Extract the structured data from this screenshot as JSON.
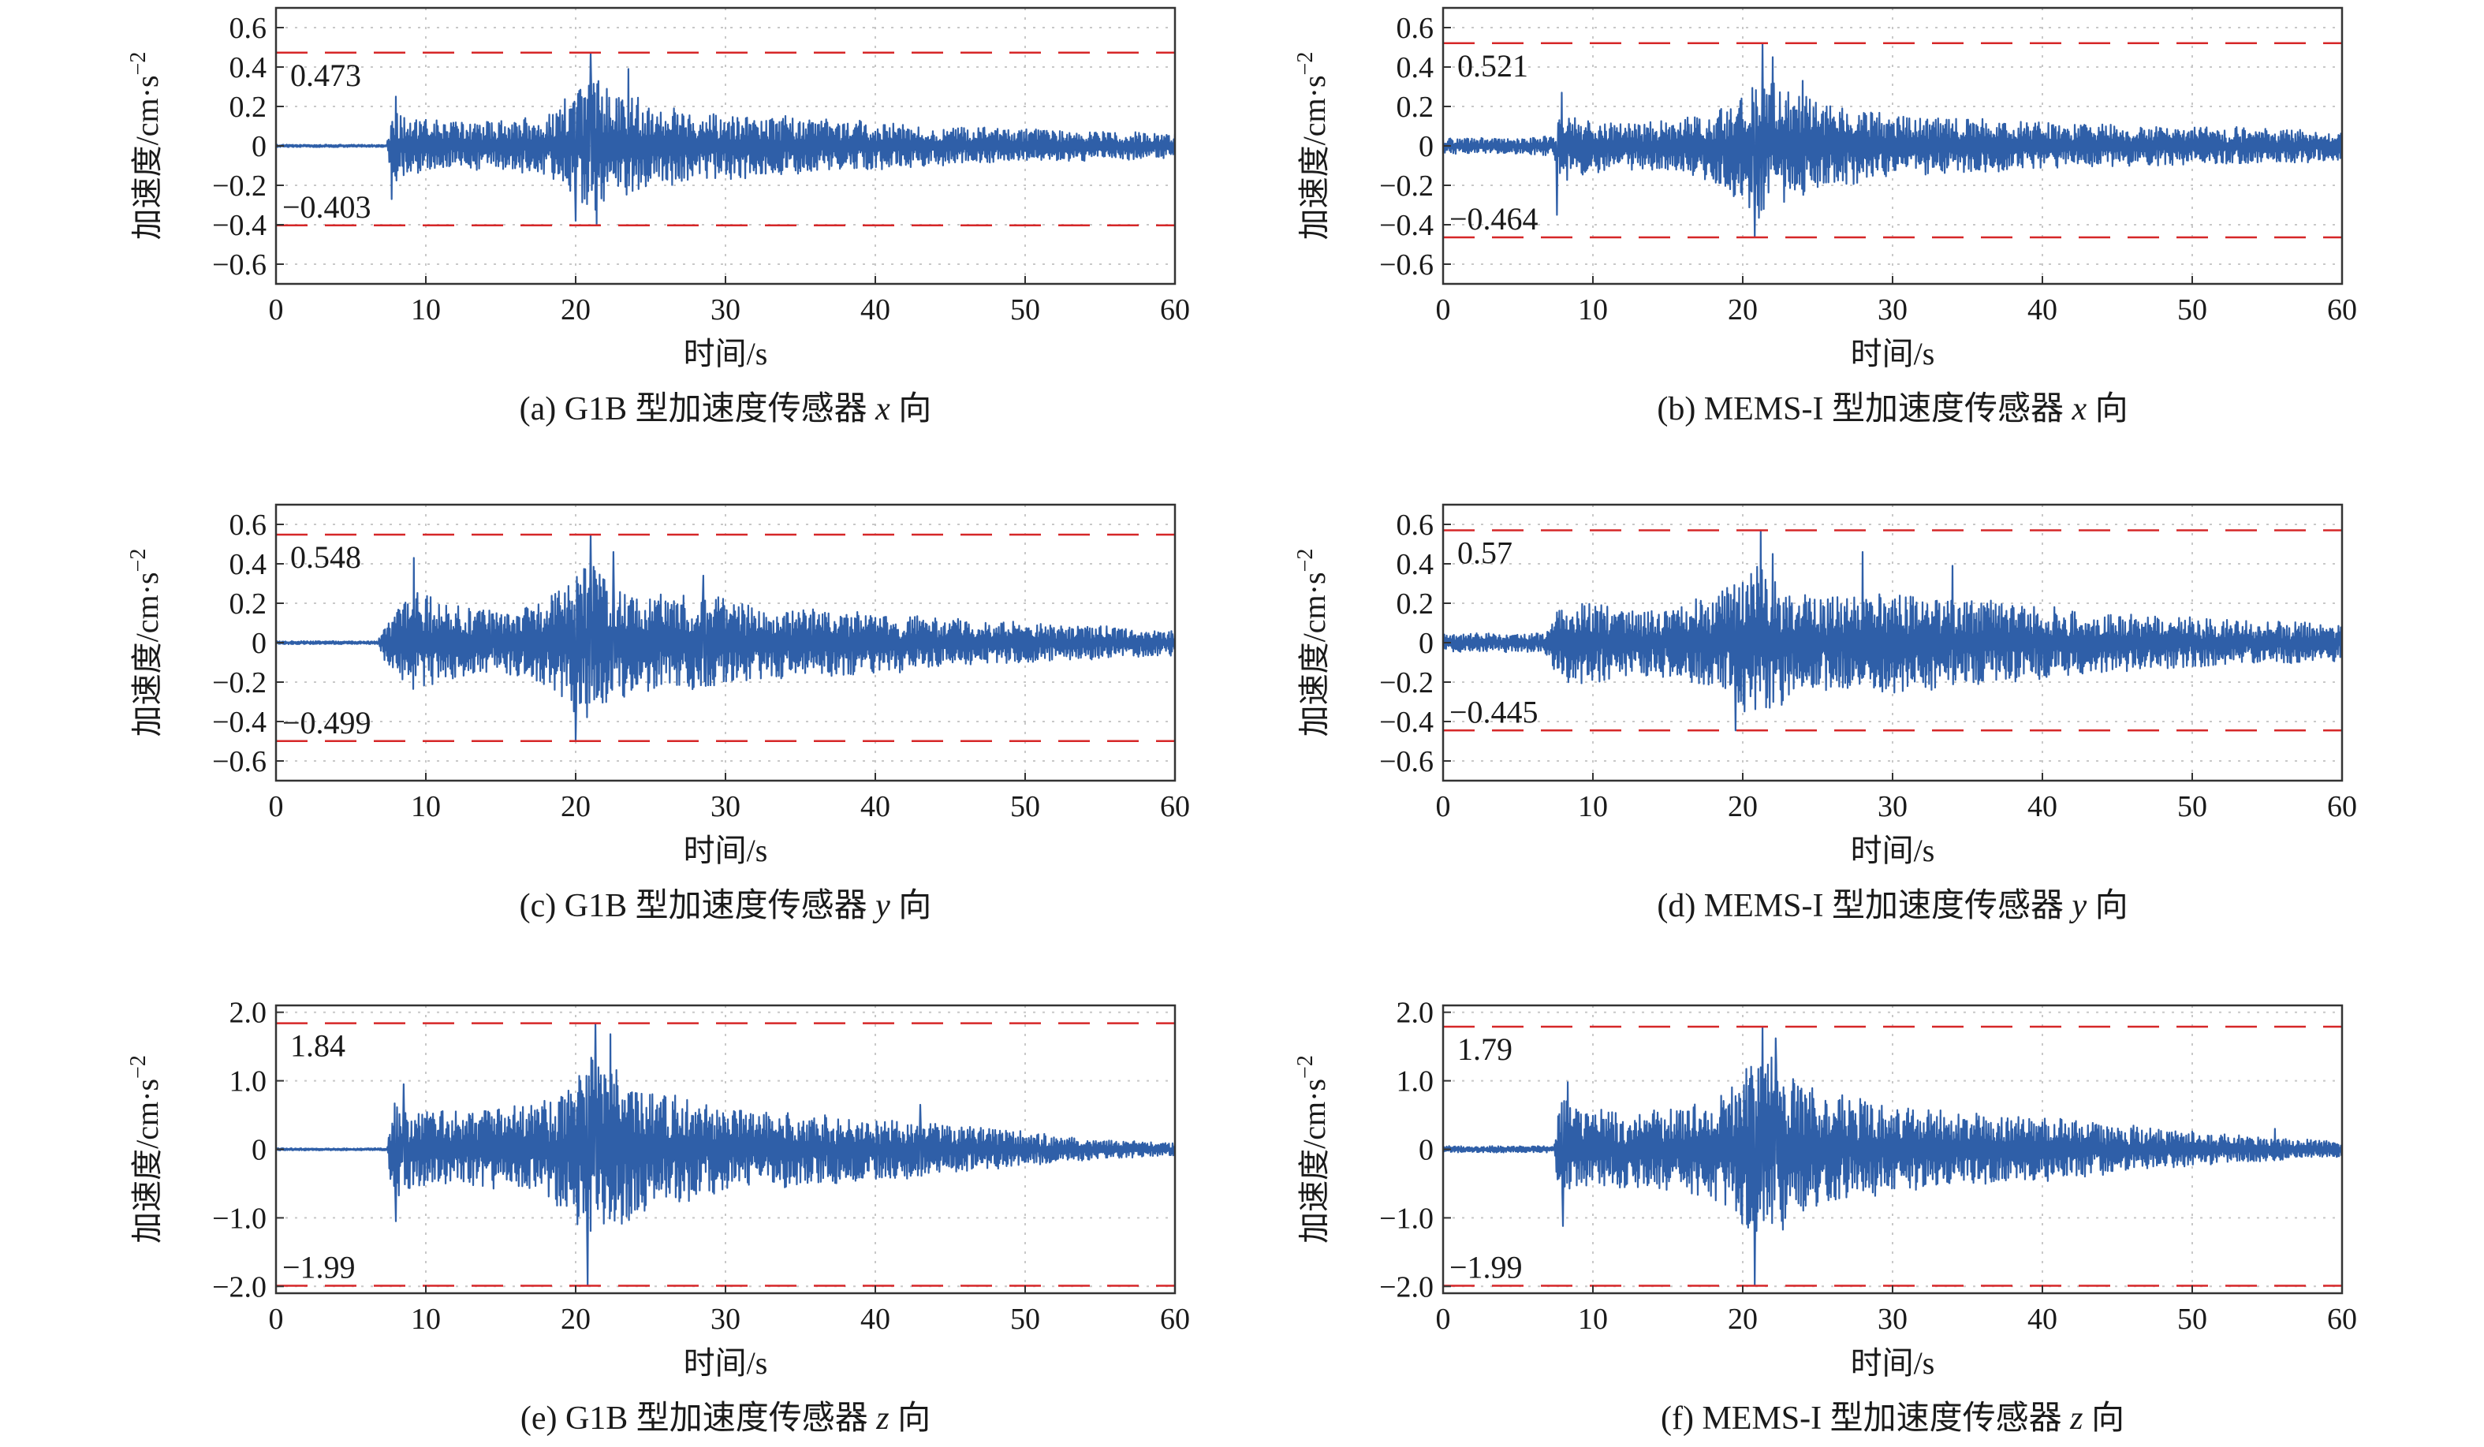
{
  "figure": {
    "line_color": "#2f5fa8",
    "ref_color": "#d62728",
    "grid_color": "#c8c8c8",
    "ylabel_main": "加速度/cm·s",
    "ylabel_sup": "−2",
    "xlabel": "时间/s"
  },
  "chart_data": [
    {
      "type": "line",
      "caption_pre": "(a) G1B 型加速度传感器 ",
      "caption_axis": "x",
      "caption_post": " 向",
      "xlim": [
        0,
        60
      ],
      "xticks": [
        0,
        10,
        20,
        30,
        40,
        50,
        60
      ],
      "ylim": [
        -0.7,
        0.7
      ],
      "yticks": [
        -0.6,
        -0.4,
        -0.2,
        0,
        0.2,
        0.4,
        0.6
      ],
      "ytick_labels": [
        "−0.6",
        "−0.4",
        "−0.2",
        "0",
        "0.2",
        "0.4",
        "0.6"
      ],
      "max_line": 0.473,
      "min_line": -0.403,
      "max_label": "0.473",
      "min_label": "−0.403",
      "grid": "dotted",
      "envelope": [
        [
          0,
          0.008
        ],
        [
          7.4,
          0.008
        ],
        [
          7.8,
          0.26
        ],
        [
          9,
          0.17
        ],
        [
          12,
          0.16
        ],
        [
          15,
          0.16
        ],
        [
          18,
          0.18
        ],
        [
          19.5,
          0.32
        ],
        [
          21,
          0.45
        ],
        [
          23,
          0.36
        ],
        [
          25,
          0.28
        ],
        [
          28,
          0.22
        ],
        [
          32,
          0.2
        ],
        [
          38,
          0.16
        ],
        [
          45,
          0.12
        ],
        [
          52,
          0.1
        ],
        [
          60,
          0.08
        ]
      ],
      "peaks": [
        [
          7.7,
          -0.27
        ],
        [
          8,
          0.25
        ],
        [
          20,
          -0.38
        ],
        [
          21,
          0.473
        ],
        [
          21.4,
          -0.4
        ],
        [
          23.5,
          0.39
        ]
      ]
    },
    {
      "type": "line",
      "caption_pre": "(b) MEMS-I 型加速度传感器 ",
      "caption_axis": "x",
      "caption_post": " 向",
      "xlim": [
        0,
        60
      ],
      "xticks": [
        0,
        10,
        20,
        30,
        40,
        50,
        60
      ],
      "ylim": [
        -0.7,
        0.7
      ],
      "yticks": [
        -0.6,
        -0.4,
        -0.2,
        0,
        0.2,
        0.4,
        0.6
      ],
      "ytick_labels": [
        "−0.6",
        "−0.4",
        "−0.2",
        "0",
        "0.2",
        "0.4",
        "0.6"
      ],
      "max_line": 0.521,
      "min_line": -0.464,
      "max_label": "0.521",
      "min_label": "−0.464",
      "grid": "dotted",
      "envelope": [
        [
          0,
          0.05
        ],
        [
          5,
          0.05
        ],
        [
          7.4,
          0.07
        ],
        [
          7.8,
          0.25
        ],
        [
          9,
          0.18
        ],
        [
          12,
          0.15
        ],
        [
          15,
          0.16
        ],
        [
          18,
          0.22
        ],
        [
          20,
          0.35
        ],
        [
          21,
          0.46
        ],
        [
          23,
          0.35
        ],
        [
          26,
          0.26
        ],
        [
          30,
          0.2
        ],
        [
          38,
          0.16
        ],
        [
          45,
          0.13
        ],
        [
          52,
          0.12
        ],
        [
          60,
          0.1
        ]
      ],
      "peaks": [
        [
          7.6,
          -0.35
        ],
        [
          7.9,
          0.27
        ],
        [
          20.8,
          -0.464
        ],
        [
          21.3,
          0.521
        ],
        [
          22,
          0.45
        ],
        [
          24,
          0.33
        ]
      ]
    },
    {
      "type": "line",
      "caption_pre": "(c) G1B 型加速度传感器 ",
      "caption_axis": "y",
      "caption_post": " 向",
      "xlim": [
        0,
        60
      ],
      "xticks": [
        0,
        10,
        20,
        30,
        40,
        50,
        60
      ],
      "ylim": [
        -0.7,
        0.7
      ],
      "yticks": [
        -0.6,
        -0.4,
        -0.2,
        0,
        0.2,
        0.4,
        0.6
      ],
      "ytick_labels": [
        "−0.6",
        "−0.4",
        "−0.2",
        "0",
        "0.2",
        "0.4",
        "0.6"
      ],
      "max_line": 0.548,
      "min_line": -0.499,
      "max_label": "0.548",
      "min_label": "−0.499",
      "grid": "dotted",
      "envelope": [
        [
          0,
          0.01
        ],
        [
          6.8,
          0.01
        ],
        [
          7.3,
          0.15
        ],
        [
          9,
          0.32
        ],
        [
          12,
          0.24
        ],
        [
          15,
          0.2
        ],
        [
          18,
          0.28
        ],
        [
          20,
          0.45
        ],
        [
          21,
          0.5
        ],
        [
          23,
          0.36
        ],
        [
          25,
          0.3
        ],
        [
          28,
          0.32
        ],
        [
          31,
          0.25
        ],
        [
          35,
          0.22
        ],
        [
          40,
          0.2
        ],
        [
          45,
          0.15
        ],
        [
          52,
          0.12
        ],
        [
          60,
          0.08
        ]
      ],
      "peaks": [
        [
          9.2,
          0.43
        ],
        [
          20,
          -0.499
        ],
        [
          21,
          0.548
        ],
        [
          22.5,
          0.46
        ],
        [
          28.5,
          0.34
        ]
      ]
    },
    {
      "type": "line",
      "caption_pre": "(d) MEMS-I 型加速度传感器 ",
      "caption_axis": "y",
      "caption_post": " 向",
      "xlim": [
        0,
        60
      ],
      "xticks": [
        0,
        10,
        20,
        30,
        40,
        50,
        60
      ],
      "ylim": [
        -0.7,
        0.7
      ],
      "yticks": [
        -0.6,
        -0.4,
        -0.2,
        0,
        0.2,
        0.4,
        0.6
      ],
      "ytick_labels": [
        "−0.6",
        "−0.4",
        "−0.2",
        "0",
        "0.2",
        "0.4",
        "0.6"
      ],
      "max_line": 0.57,
      "min_line": -0.445,
      "max_label": "0.57",
      "min_label": "−0.445",
      "grid": "dotted",
      "envelope": [
        [
          0,
          0.06
        ],
        [
          6.8,
          0.06
        ],
        [
          7.5,
          0.2
        ],
        [
          9,
          0.3
        ],
        [
          12,
          0.22
        ],
        [
          15,
          0.22
        ],
        [
          18,
          0.3
        ],
        [
          20,
          0.42
        ],
        [
          21,
          0.5
        ],
        [
          23,
          0.35
        ],
        [
          25,
          0.3
        ],
        [
          29,
          0.32
        ],
        [
          33,
          0.3
        ],
        [
          38,
          0.25
        ],
        [
          45,
          0.18
        ],
        [
          52,
          0.15
        ],
        [
          60,
          0.12
        ]
      ],
      "peaks": [
        [
          19.5,
          -0.445
        ],
        [
          21.2,
          0.57
        ],
        [
          22,
          0.45
        ],
        [
          28,
          0.46
        ],
        [
          34,
          0.39
        ]
      ]
    },
    {
      "type": "line",
      "caption_pre": "(e) G1B 型加速度传感器 ",
      "caption_axis": "z",
      "caption_post": " 向",
      "xlim": [
        0,
        60
      ],
      "xticks": [
        0,
        10,
        20,
        30,
        40,
        50,
        60
      ],
      "ylim": [
        -2.1,
        2.1
      ],
      "yticks": [
        -2,
        -1,
        0,
        1,
        2
      ],
      "ytick_labels": [
        "−2.0",
        "−1.0",
        "0",
        "1.0",
        "2.0"
      ],
      "max_line": 1.84,
      "min_line": -1.99,
      "max_label": "1.84",
      "min_label": "−1.99",
      "grid": "dotted",
      "envelope": [
        [
          0,
          0.02
        ],
        [
          7.4,
          0.02
        ],
        [
          7.8,
          0.95
        ],
        [
          9,
          0.75
        ],
        [
          12,
          0.7
        ],
        [
          15,
          0.75
        ],
        [
          18,
          0.9
        ],
        [
          19.5,
          1.2
        ],
        [
          21,
          1.84
        ],
        [
          23,
          1.5
        ],
        [
          25,
          1.05
        ],
        [
          28,
          0.9
        ],
        [
          32,
          0.75
        ],
        [
          38,
          0.6
        ],
        [
          42,
          0.55
        ],
        [
          45,
          0.45
        ],
        [
          50,
          0.32
        ],
        [
          55,
          0.18
        ],
        [
          60,
          0.12
        ]
      ],
      "peaks": [
        [
          8,
          -1.05
        ],
        [
          8.5,
          0.95
        ],
        [
          20.8,
          -1.99
        ],
        [
          21.3,
          1.84
        ],
        [
          22.3,
          1.68
        ],
        [
          43,
          0.65
        ]
      ]
    },
    {
      "type": "line",
      "caption_pre": "(f) MEMS-I 型加速度传感器 ",
      "caption_axis": "z",
      "caption_post": " 向",
      "xlim": [
        0,
        60
      ],
      "xticks": [
        0,
        10,
        20,
        30,
        40,
        50,
        60
      ],
      "ylim": [
        -2.1,
        2.1
      ],
      "yticks": [
        -2,
        -1,
        0,
        1,
        2
      ],
      "ytick_labels": [
        "−2.0",
        "−1.0",
        "0",
        "1.0",
        "2.0"
      ],
      "max_line": 1.79,
      "min_line": -1.99,
      "max_label": "1.79",
      "min_label": "−1.99",
      "grid": "dotted",
      "envelope": [
        [
          0,
          0.06
        ],
        [
          7.4,
          0.06
        ],
        [
          7.8,
          1.0
        ],
        [
          9,
          0.75
        ],
        [
          12,
          0.7
        ],
        [
          15,
          0.75
        ],
        [
          18,
          0.9
        ],
        [
          19.5,
          1.2
        ],
        [
          21,
          1.79
        ],
        [
          23,
          1.45
        ],
        [
          25,
          1.05
        ],
        [
          28,
          0.9
        ],
        [
          32,
          0.75
        ],
        [
          38,
          0.6
        ],
        [
          42,
          0.55
        ],
        [
          45,
          0.45
        ],
        [
          50,
          0.32
        ],
        [
          55,
          0.22
        ],
        [
          60,
          0.14
        ]
      ],
      "peaks": [
        [
          8,
          -1.12
        ],
        [
          8.3,
          0.98
        ],
        [
          20.8,
          -1.99
        ],
        [
          21.3,
          1.79
        ],
        [
          22.2,
          1.62
        ],
        [
          55.5,
          0.3
        ]
      ]
    }
  ]
}
